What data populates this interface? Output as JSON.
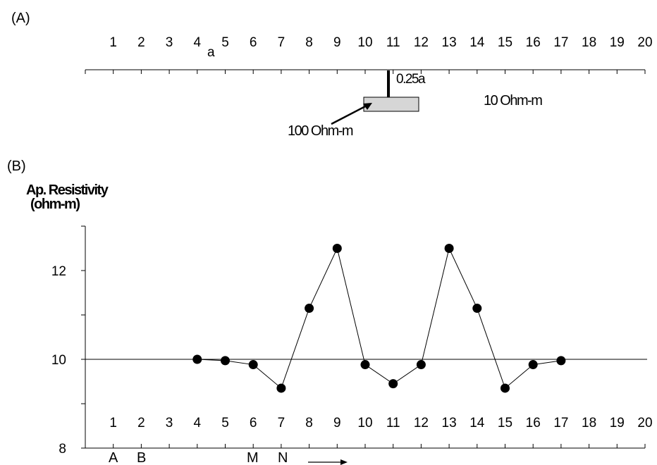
{
  "panel_a": {
    "label": "(A)",
    "position_ticks": [
      "1",
      "2",
      "3",
      "4",
      "5",
      "6",
      "7",
      "8",
      "9",
      "10",
      "11",
      "12",
      "13",
      "14",
      "15",
      "16",
      "17",
      "18",
      "19",
      "20"
    ],
    "spacing_label": "a",
    "depth_label": "0.25a",
    "host_resistivity": "10 Ohm-m",
    "body_resistivity": "100 Ohm-m",
    "colors": {
      "body_fill": "#d6d6d6",
      "line": "#000000"
    }
  },
  "panel_b": {
    "label": "(B)",
    "ylabel_line1": "Ap. Resistivity",
    "ylabel_line2": "(ohm-m)",
    "electrodes": [
      "A",
      "B",
      "M",
      "N"
    ],
    "direction_icon": "right-arrow-icon"
  },
  "chart_data": {
    "type": "line",
    "x_ticks": [
      "1",
      "2",
      "3",
      "4",
      "5",
      "6",
      "7",
      "8",
      "9",
      "10",
      "11",
      "12",
      "13",
      "14",
      "15",
      "16",
      "17",
      "18",
      "19",
      "20"
    ],
    "y_ticks": [
      "8",
      "10",
      "12"
    ],
    "ylim": [
      8,
      13
    ],
    "xlim": [
      0,
      20
    ],
    "reference_line": 10,
    "series": [
      {
        "x": [
          4,
          5,
          6,
          7,
          8,
          9,
          10,
          11,
          12,
          13,
          14,
          15,
          16,
          17
        ],
        "y": [
          10.0,
          9.97,
          9.88,
          9.35,
          11.15,
          12.5,
          9.88,
          9.45,
          9.88,
          12.5,
          11.15,
          9.35,
          9.88,
          9.97
        ]
      }
    ],
    "grid": false,
    "colors": {
      "marker": "#000000",
      "line": "#000000"
    }
  }
}
